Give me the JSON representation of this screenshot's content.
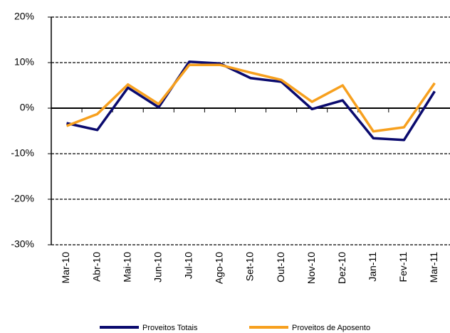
{
  "chart_data": {
    "type": "line",
    "categories": [
      "Mar-10",
      "Abr-10",
      "Mai-10",
      "Jun-10",
      "Jul-10",
      "Ago-10",
      "Set-10",
      "Out-10",
      "Nov-10",
      "Dez-10",
      "Jan-11",
      "Fev-11",
      "Mar-11"
    ],
    "series": [
      {
        "name": "Proveitos Totais",
        "color": "#0a0a6e",
        "values": [
          -3.3,
          -4.8,
          4.5,
          0.2,
          10.2,
          9.8,
          6.6,
          5.8,
          -0.2,
          1.7,
          -6.6,
          -7.0,
          3.7
        ]
      },
      {
        "name": "Proveitos de Aposento",
        "color": "#f7a01e",
        "values": [
          -3.9,
          -1.3,
          5.2,
          0.9,
          9.5,
          9.5,
          7.8,
          6.2,
          1.4,
          5.0,
          -5.1,
          -4.2,
          5.5
        ]
      }
    ],
    "ylim": [
      -30,
      20
    ],
    "yticks": [
      {
        "value": -30,
        "label": "-30%"
      },
      {
        "value": -20,
        "label": "-20%"
      },
      {
        "value": -10,
        "label": "-10%"
      },
      {
        "value": 0,
        "label": "0%"
      },
      {
        "value": 10,
        "label": "10%"
      },
      {
        "value": 20,
        "label": "20%"
      }
    ],
    "grid": true,
    "legend": "bottom"
  }
}
